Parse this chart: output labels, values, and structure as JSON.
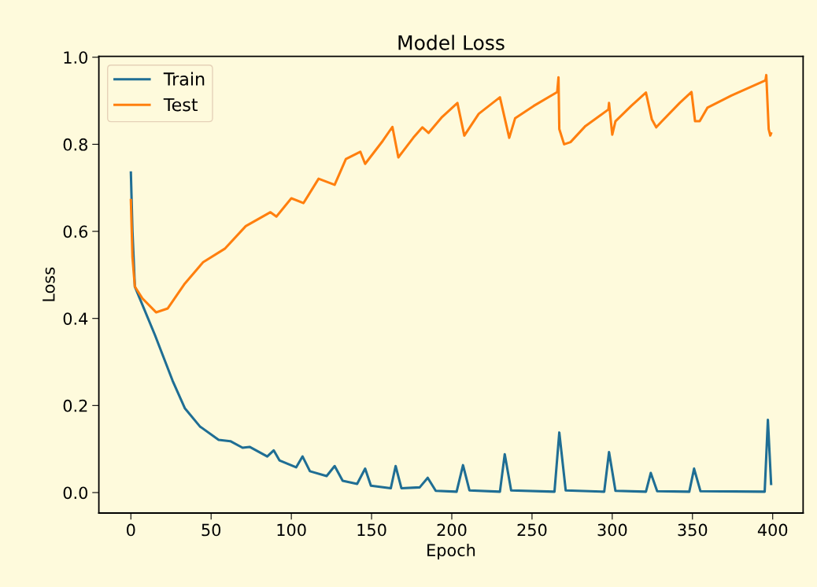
{
  "chart_data": {
    "type": "line",
    "title": "Model Loss",
    "xlabel": "Epoch",
    "ylabel": "Loss",
    "xlim": [
      -19.95,
      418.95
    ],
    "ylim": [
      -0.047,
      1.002
    ],
    "xticks": [
      0,
      50,
      100,
      150,
      200,
      250,
      300,
      350,
      400
    ],
    "yticks": [
      {
        "value": 0,
        "label": "0.0"
      },
      {
        "value": 0.2,
        "label": "0.2"
      },
      {
        "value": 0.4,
        "label": "0.4"
      },
      {
        "value": 0.6,
        "label": "0.6"
      },
      {
        "value": 0.8,
        "label": "0.8"
      },
      {
        "value": 1.0,
        "label": "1.0"
      }
    ],
    "grid": false,
    "legend": "top left",
    "marker": "none",
    "line_style": "solid",
    "series": [
      {
        "name": "Train",
        "color": "#1f6e94",
        "x": [
          0,
          1,
          2.5,
          15,
          26,
          33.6,
          43,
          54.7,
          62,
          69.6,
          74,
          85,
          89,
          92.6,
          103,
          107,
          111.6,
          122,
          127,
          132,
          141,
          146,
          149.6,
          162,
          165,
          168.6,
          180,
          185,
          190,
          203,
          207,
          211,
          230,
          233,
          237,
          264,
          267,
          271,
          295,
          298,
          302,
          321,
          324,
          328,
          348,
          351,
          355,
          395,
          397,
          399
        ],
        "values": [
          0.735,
          0.6,
          0.473,
          0.362,
          0.257,
          0.194,
          0.152,
          0.121,
          0.118,
          0.103,
          0.105,
          0.083,
          0.097,
          0.074,
          0.058,
          0.083,
          0.049,
          0.038,
          0.061,
          0.027,
          0.02,
          0.055,
          0.016,
          0.01,
          0.061,
          0.01,
          0.012,
          0.034,
          0.004,
          0.002,
          0.063,
          0.005,
          0.002,
          0.088,
          0.005,
          0.002,
          0.138,
          0.005,
          0.002,
          0.093,
          0.004,
          0.002,
          0.045,
          0.003,
          0.002,
          0.055,
          0.003,
          0.002,
          0.167,
          0.02
        ]
      },
      {
        "name": "Test",
        "color": "#ff7f0e",
        "x": [
          0,
          1,
          2.5,
          7.2,
          15.7,
          23,
          33.6,
          45,
          58.5,
          71.6,
          87,
          90.7,
          100,
          107.6,
          117,
          127,
          134,
          143,
          146,
          157,
          163,
          166.7,
          176,
          181.7,
          185.5,
          194,
          203.5,
          207.8,
          216.8,
          230,
          235.8,
          239.5,
          251,
          265.7,
          266.5,
          267,
          270,
          274,
          283.3,
          297.6,
          298,
          300,
          302,
          311.8,
          321,
          324.7,
          327.4,
          331,
          342,
          349.4,
          351.6,
          354.5,
          359.3,
          374.3,
          395.5,
          396,
          397.5,
          398.5,
          399
        ],
        "values": [
          0.672,
          0.54,
          0.473,
          0.446,
          0.414,
          0.423,
          0.48,
          0.529,
          0.56,
          0.612,
          0.644,
          0.634,
          0.676,
          0.665,
          0.721,
          0.707,
          0.766,
          0.783,
          0.755,
          0.808,
          0.84,
          0.77,
          0.815,
          0.839,
          0.826,
          0.863,
          0.895,
          0.82,
          0.87,
          0.908,
          0.815,
          0.86,
          0.888,
          0.92,
          0.954,
          0.835,
          0.8,
          0.805,
          0.842,
          0.88,
          0.895,
          0.822,
          0.853,
          0.888,
          0.919,
          0.857,
          0.839,
          0.853,
          0.895,
          0.92,
          0.853,
          0.853,
          0.884,
          0.912,
          0.947,
          0.959,
          0.835,
          0.82,
          0.825
        ]
      }
    ]
  }
}
